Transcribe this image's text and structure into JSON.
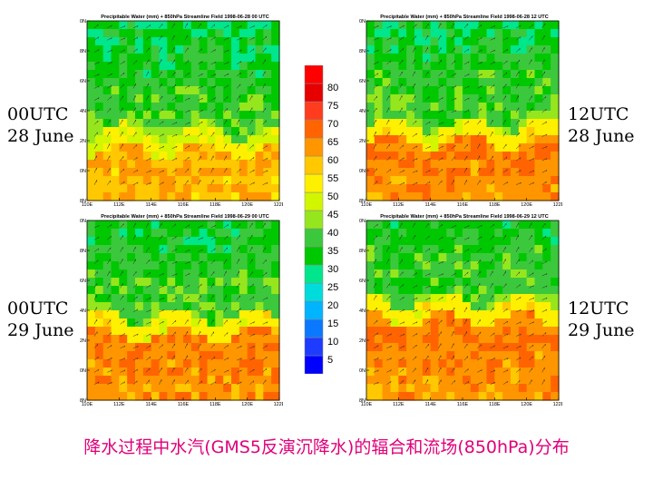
{
  "caption": "降水过程中水汽(GMS5反演沉降水)的辐合和流场(850hPa)分布",
  "colorbar": {
    "levels": [
      5,
      10,
      15,
      20,
      25,
      30,
      35,
      40,
      45,
      50,
      55,
      60,
      65,
      70,
      75,
      80
    ],
    "colors": [
      "#0000ff",
      "#1e3cff",
      "#0a78ff",
      "#00b4ff",
      "#00dcdc",
      "#00e68c",
      "#00c800",
      "#3cc83c",
      "#96e61e",
      "#d2f500",
      "#fff000",
      "#ffc800",
      "#ff9600",
      "#ff6400",
      "#ff3c1e",
      "#e60000",
      "#ff0000"
    ]
  },
  "chart_data": [
    {
      "type": "heatmap",
      "title": "Precipitable Water (mm) + 850hPa Streamline Field 1998-06-28 00 UTC",
      "side_label": [
        "00UTC",
        "28 June"
      ],
      "x_ticks": [
        "110E",
        "112E",
        "114E",
        "116E",
        "118E",
        "120E",
        "122E"
      ],
      "y_ticks": [
        "28N",
        "30N",
        "32N",
        "34N",
        "36N",
        "38N",
        "40N"
      ],
      "xlim": [
        110,
        122
      ],
      "ylim": [
        28,
        40
      ],
      "moist_boundary_lat": 32.0,
      "moist_core_value": 60,
      "dry_value": 40,
      "flow": "southwesterly"
    },
    {
      "type": "heatmap",
      "title": "Precipitable Water (mm) + 850hPa Streamline Field 1998-06-28 12 UTC",
      "side_label": [
        "12UTC",
        "28 June"
      ],
      "x_ticks": [
        "110E",
        "112E",
        "114E",
        "116E",
        "118E",
        "120E",
        "122E"
      ],
      "y_ticks": [
        "28N",
        "30N",
        "32N",
        "34N",
        "36N",
        "38N",
        "40N"
      ],
      "xlim": [
        110,
        122
      ],
      "ylim": [
        28,
        40
      ],
      "moist_boundary_lat": 32.5,
      "moist_core_value": 65,
      "dry_value": 40,
      "flow": "southwesterly"
    },
    {
      "type": "heatmap",
      "title": "Precipitable Water (mm) + 850hPa Streamline Field 1998-06-29 00 UTC",
      "side_label": [
        "00UTC",
        "29 June"
      ],
      "x_ticks": [
        "110E",
        "112E",
        "114E",
        "116E",
        "118E",
        "120E",
        "122E"
      ],
      "y_ticks": [
        "28N",
        "30N",
        "32N",
        "34N",
        "36N",
        "38N",
        "40N"
      ],
      "xlim": [
        110,
        122
      ],
      "ylim": [
        28,
        40
      ],
      "moist_boundary_lat": 33.0,
      "moist_core_value": 65,
      "dry_value": 40,
      "flow": "southwesterly"
    },
    {
      "type": "heatmap",
      "title": "Precipitable Water (mm) + 850hPa Streamline Field 1998-06-29 12 UTC",
      "side_label": [
        "12UTC",
        "29 June"
      ],
      "x_ticks": [
        "110E",
        "112E",
        "114E",
        "116E",
        "118E",
        "120E",
        "122E"
      ],
      "y_ticks": [
        "28N",
        "30N",
        "32N",
        "34N",
        "36N",
        "38N",
        "40N"
      ],
      "xlim": [
        110,
        122
      ],
      "ylim": [
        28,
        40
      ],
      "moist_boundary_lat": 34.0,
      "moist_core_value": 65,
      "dry_value": 40,
      "flow": "southwesterly"
    }
  ]
}
